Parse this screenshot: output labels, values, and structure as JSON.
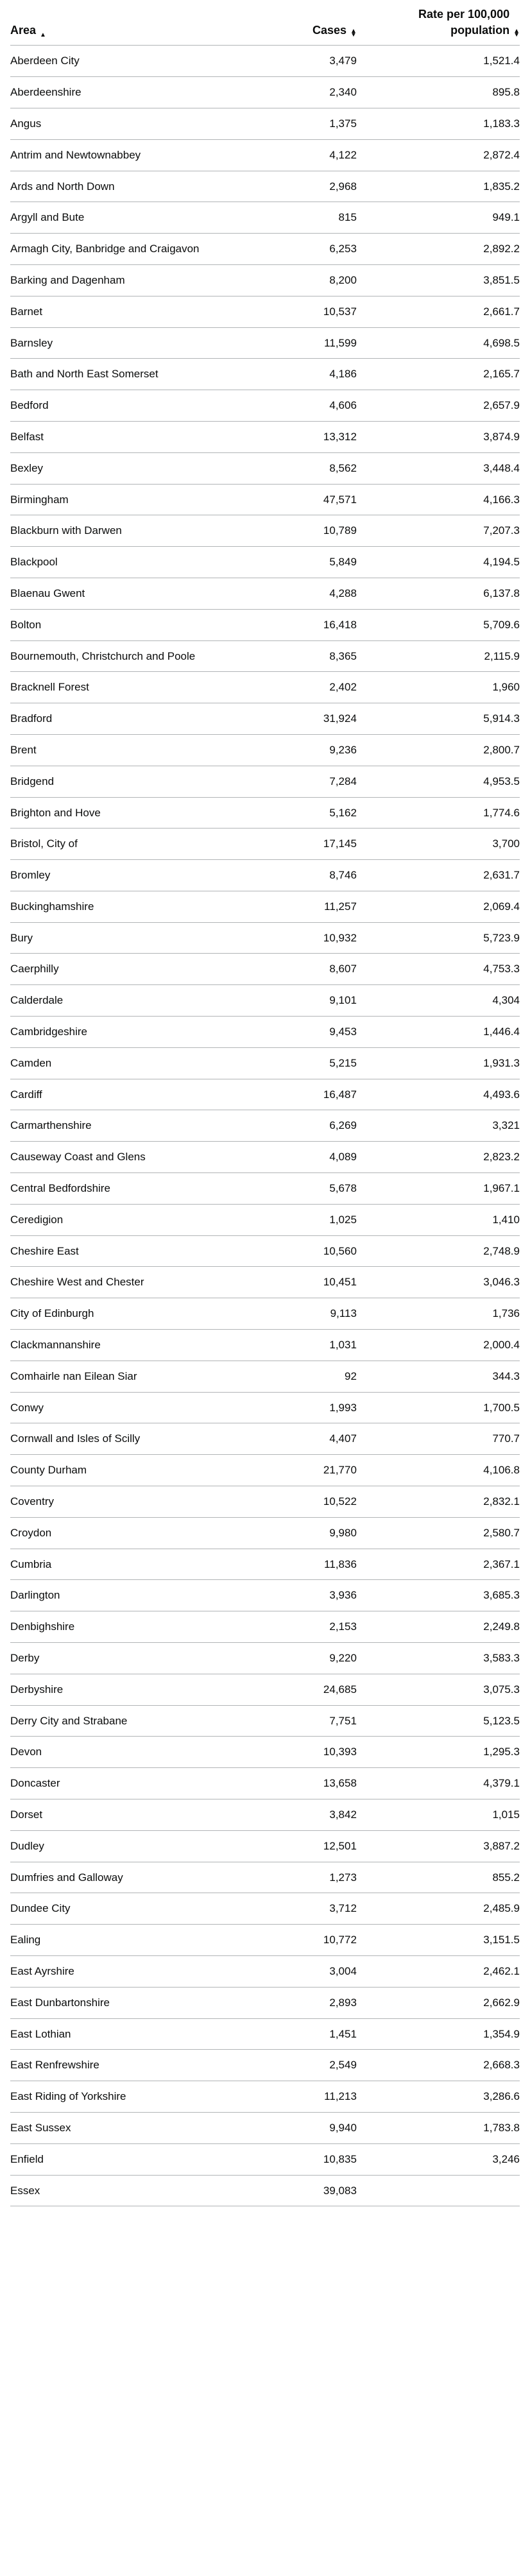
{
  "headers": {
    "area": "Area",
    "cases": "Cases",
    "rate": "Rate per 100,000 population"
  },
  "rows": [
    {
      "area": "Aberdeen City",
      "cases": "3,479",
      "rate": "1,521.4"
    },
    {
      "area": "Aberdeenshire",
      "cases": "2,340",
      "rate": "895.8"
    },
    {
      "area": "Angus",
      "cases": "1,375",
      "rate": "1,183.3"
    },
    {
      "area": "Antrim and Newtownabbey",
      "cases": "4,122",
      "rate": "2,872.4"
    },
    {
      "area": "Ards and North Down",
      "cases": "2,968",
      "rate": "1,835.2"
    },
    {
      "area": "Argyll and Bute",
      "cases": "815",
      "rate": "949.1"
    },
    {
      "area": "Armagh City, Banbridge and Craigavon",
      "cases": "6,253",
      "rate": "2,892.2"
    },
    {
      "area": "Barking and Dagenham",
      "cases": "8,200",
      "rate": "3,851.5"
    },
    {
      "area": "Barnet",
      "cases": "10,537",
      "rate": "2,661.7"
    },
    {
      "area": "Barnsley",
      "cases": "11,599",
      "rate": "4,698.5"
    },
    {
      "area": "Bath and North East Somerset",
      "cases": "4,186",
      "rate": "2,165.7"
    },
    {
      "area": "Bedford",
      "cases": "4,606",
      "rate": "2,657.9"
    },
    {
      "area": "Belfast",
      "cases": "13,312",
      "rate": "3,874.9"
    },
    {
      "area": "Bexley",
      "cases": "8,562",
      "rate": "3,448.4"
    },
    {
      "area": "Birmingham",
      "cases": "47,571",
      "rate": "4,166.3"
    },
    {
      "area": "Blackburn with Darwen",
      "cases": "10,789",
      "rate": "7,207.3"
    },
    {
      "area": "Blackpool",
      "cases": "5,849",
      "rate": "4,194.5"
    },
    {
      "area": "Blaenau Gwent",
      "cases": "4,288",
      "rate": "6,137.8"
    },
    {
      "area": "Bolton",
      "cases": "16,418",
      "rate": "5,709.6"
    },
    {
      "area": "Bournemouth, Christchurch and Poole",
      "cases": "8,365",
      "rate": "2,115.9"
    },
    {
      "area": "Bracknell Forest",
      "cases": "2,402",
      "rate": "1,960"
    },
    {
      "area": "Bradford",
      "cases": "31,924",
      "rate": "5,914.3"
    },
    {
      "area": "Brent",
      "cases": "9,236",
      "rate": "2,800.7"
    },
    {
      "area": "Bridgend",
      "cases": "7,284",
      "rate": "4,953.5"
    },
    {
      "area": "Brighton and Hove",
      "cases": "5,162",
      "rate": "1,774.6"
    },
    {
      "area": "Bristol, City of",
      "cases": "17,145",
      "rate": "3,700"
    },
    {
      "area": "Bromley",
      "cases": "8,746",
      "rate": "2,631.7"
    },
    {
      "area": "Buckinghamshire",
      "cases": "11,257",
      "rate": "2,069.4"
    },
    {
      "area": "Bury",
      "cases": "10,932",
      "rate": "5,723.9"
    },
    {
      "area": "Caerphilly",
      "cases": "8,607",
      "rate": "4,753.3"
    },
    {
      "area": "Calderdale",
      "cases": "9,101",
      "rate": "4,304"
    },
    {
      "area": "Cambridgeshire",
      "cases": "9,453",
      "rate": "1,446.4"
    },
    {
      "area": "Camden",
      "cases": "5,215",
      "rate": "1,931.3"
    },
    {
      "area": "Cardiff",
      "cases": "16,487",
      "rate": "4,493.6"
    },
    {
      "area": "Carmarthenshire",
      "cases": "6,269",
      "rate": "3,321"
    },
    {
      "area": "Causeway Coast and Glens",
      "cases": "4,089",
      "rate": "2,823.2"
    },
    {
      "area": "Central Bedfordshire",
      "cases": "5,678",
      "rate": "1,967.1"
    },
    {
      "area": "Ceredigion",
      "cases": "1,025",
      "rate": "1,410"
    },
    {
      "area": "Cheshire East",
      "cases": "10,560",
      "rate": "2,748.9"
    },
    {
      "area": "Cheshire West and Chester",
      "cases": "10,451",
      "rate": "3,046.3"
    },
    {
      "area": "City of Edinburgh",
      "cases": "9,113",
      "rate": "1,736"
    },
    {
      "area": "Clackmannanshire",
      "cases": "1,031",
      "rate": "2,000.4"
    },
    {
      "area": "Comhairle nan Eilean Siar",
      "cases": "92",
      "rate": "344.3"
    },
    {
      "area": "Conwy",
      "cases": "1,993",
      "rate": "1,700.5"
    },
    {
      "area": "Cornwall and Isles of Scilly",
      "cases": "4,407",
      "rate": "770.7"
    },
    {
      "area": "County Durham",
      "cases": "21,770",
      "rate": "4,106.8"
    },
    {
      "area": "Coventry",
      "cases": "10,522",
      "rate": "2,832.1"
    },
    {
      "area": "Croydon",
      "cases": "9,980",
      "rate": "2,580.7"
    },
    {
      "area": "Cumbria",
      "cases": "11,836",
      "rate": "2,367.1"
    },
    {
      "area": "Darlington",
      "cases": "3,936",
      "rate": "3,685.3"
    },
    {
      "area": "Denbighshire",
      "cases": "2,153",
      "rate": "2,249.8"
    },
    {
      "area": "Derby",
      "cases": "9,220",
      "rate": "3,583.3"
    },
    {
      "area": "Derbyshire",
      "cases": "24,685",
      "rate": "3,075.3"
    },
    {
      "area": "Derry City and Strabane",
      "cases": "7,751",
      "rate": "5,123.5"
    },
    {
      "area": "Devon",
      "cases": "10,393",
      "rate": "1,295.3"
    },
    {
      "area": "Doncaster",
      "cases": "13,658",
      "rate": "4,379.1"
    },
    {
      "area": "Dorset",
      "cases": "3,842",
      "rate": "1,015"
    },
    {
      "area": "Dudley",
      "cases": "12,501",
      "rate": "3,887.2"
    },
    {
      "area": "Dumfries and Galloway",
      "cases": "1,273",
      "rate": "855.2"
    },
    {
      "area": "Dundee City",
      "cases": "3,712",
      "rate": "2,485.9"
    },
    {
      "area": "Ealing",
      "cases": "10,772",
      "rate": "3,151.5"
    },
    {
      "area": "East Ayrshire",
      "cases": "3,004",
      "rate": "2,462.1"
    },
    {
      "area": "East Dunbartonshire",
      "cases": "2,893",
      "rate": "2,662.9"
    },
    {
      "area": "East Lothian",
      "cases": "1,451",
      "rate": "1,354.9"
    },
    {
      "area": "East Renfrewshire",
      "cases": "2,549",
      "rate": "2,668.3"
    },
    {
      "area": "East Riding of Yorkshire",
      "cases": "11,213",
      "rate": "3,286.6"
    },
    {
      "area": "East Sussex",
      "cases": "9,940",
      "rate": "1,783.8"
    },
    {
      "area": "Enfield",
      "cases": "10,835",
      "rate": "3,246"
    },
    {
      "area": "Essex",
      "cases": "39,083",
      "rate": ""
    }
  ]
}
